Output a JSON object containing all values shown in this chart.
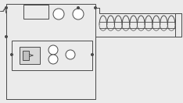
{
  "bg_color": "#ebebeb",
  "line_color": "#4a4a4a",
  "lw": 0.7,
  "fig_width": 2.34,
  "fig_height": 1.32,
  "dpi": 100
}
